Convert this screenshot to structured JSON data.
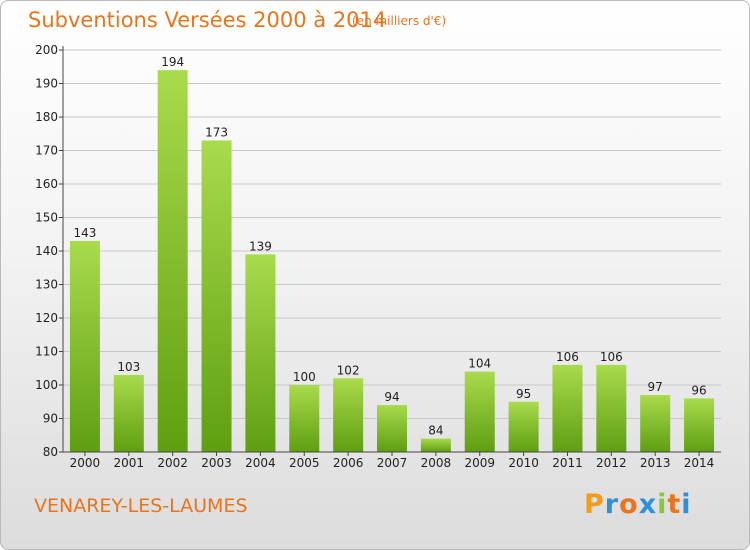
{
  "title": "Subventions Versées 2000 à 2014",
  "subtitle": "(en milliers d'€)",
  "commune": "VENAREY-LES-LAUMES",
  "logo": {
    "text": "Proxiti",
    "letters": [
      "P",
      "r",
      "o",
      "x",
      "i",
      "t",
      "i"
    ],
    "colors": [
      "#f39c1a",
      "#2f8fd8",
      "#e8741c",
      "#2f8fd8",
      "#8cc63f",
      "#e8741c",
      "#2f8fd8"
    ]
  },
  "colors": {
    "bar_light": "#a9db4c",
    "bar_dark": "#5f9e12",
    "grid": "#c8c8c8",
    "axis": "#444444",
    "accent": "#e8741c"
  },
  "chart_data": {
    "type": "bar",
    "title": "Subventions Versées 2000 à 2014",
    "subtitle": "(en milliers d'€)",
    "categories": [
      "2000",
      "2001",
      "2002",
      "2003",
      "2004",
      "2005",
      "2006",
      "2007",
      "2008",
      "2009",
      "2010",
      "2011",
      "2012",
      "2013",
      "2014"
    ],
    "values": [
      143,
      103,
      194,
      173,
      139,
      100,
      102,
      94,
      84,
      104,
      95,
      106,
      106,
      97,
      96
    ],
    "ylim": [
      80,
      200
    ],
    "yticks": [
      80,
      90,
      100,
      110,
      120,
      130,
      140,
      150,
      160,
      170,
      180,
      190,
      200
    ],
    "grid": true,
    "legend": "none"
  }
}
